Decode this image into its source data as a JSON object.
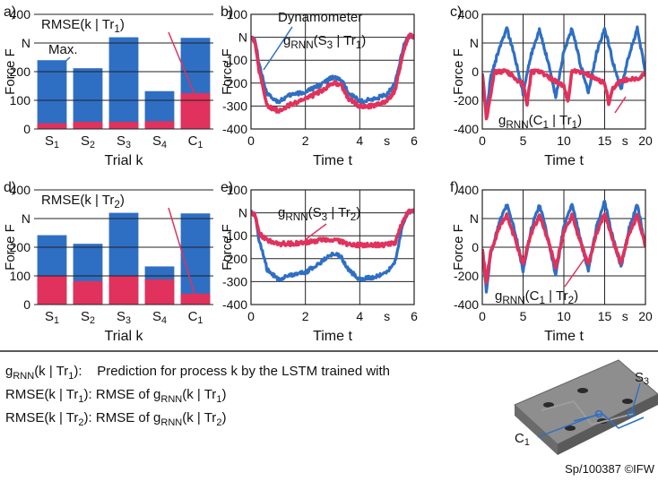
{
  "colors": {
    "blue": "#2e6fc4",
    "red": "#e0325c",
    "grid": "#222222",
    "fixture": "#8e8e8e"
  },
  "legend": [
    {
      "lhs": "g<sub>RNN</sub>(k | Tr<sub>1</sub>):",
      "rhs": "Prediction for process k by the LSTM trained with"
    },
    {
      "lhs": "RMSE(k | Tr<sub>1</sub>):",
      "rhs": "RMSE of g<sub>RNN</sub>(k | Tr<sub>1</sub>)"
    },
    {
      "lhs": "RMSE(k | Tr<sub>2</sub>):",
      "rhs": "RMSE of g<sub>RNN</sub>(k | Tr<sub>2</sub>)"
    }
  ],
  "fixture": {
    "labels": [
      "S3",
      "C1"
    ]
  },
  "credit": "Sp/100387 ©IFW",
  "chart_data": [
    {
      "panel": "a)",
      "type": "bar",
      "ylabel": "Force F",
      "yunit": "N",
      "xlabel": "Trial k",
      "ylim": [
        0,
        400
      ],
      "yticks": [
        0,
        100,
        200,
        300,
        400
      ],
      "categories": [
        "S1",
        "S2",
        "S3",
        "S4",
        "C1"
      ],
      "series": [
        {
          "name": "Max.",
          "color": "#2e6fc4",
          "values": [
            240,
            212,
            320,
            132,
            318
          ]
        },
        {
          "name": "RMSE(k | Tr1)",
          "color": "#e0325c",
          "values": [
            20,
            25,
            25,
            27,
            125
          ]
        }
      ]
    },
    {
      "panel": "b)",
      "type": "line",
      "ylabel": "Force F",
      "yunit": "N",
      "xlabel": "Time t",
      "xunit": "s",
      "xlim": [
        0,
        6
      ],
      "xticks": [
        0,
        2,
        4,
        6
      ],
      "ylim": [
        -400,
        100
      ],
      "yticks": [
        -400,
        -300,
        -200,
        -100,
        0,
        100
      ],
      "series": [
        {
          "name": "Dynamometer",
          "color": "#2e6fc4",
          "x": [
            0,
            0.15,
            0.3,
            0.6,
            1.0,
            1.5,
            2.0,
            2.5,
            3.0,
            3.3,
            3.6,
            4.0,
            4.5,
            5.0,
            5.3,
            5.6,
            5.8
          ],
          "y": [
            0,
            -10,
            -120,
            -250,
            -280,
            -250,
            -240,
            -210,
            -175,
            -185,
            -240,
            -280,
            -270,
            -250,
            -200,
            -40,
            5
          ]
        },
        {
          "name": "gRNN(S3 | Tr1)",
          "color": "#e0325c",
          "x": [
            0,
            0.15,
            0.3,
            0.6,
            1.0,
            1.5,
            2.0,
            2.5,
            3.0,
            3.3,
            3.6,
            4.0,
            4.5,
            5.0,
            5.3,
            5.6,
            5.8
          ],
          "y": [
            0,
            -20,
            -150,
            -300,
            -320,
            -290,
            -270,
            -240,
            -200,
            -205,
            -270,
            -300,
            -300,
            -280,
            -230,
            -60,
            5
          ]
        }
      ]
    },
    {
      "panel": "c)",
      "type": "line",
      "ylabel": "Force F",
      "yunit": "N",
      "xlabel": "Time t",
      "xunit": "s",
      "xlim": [
        0,
        20
      ],
      "xticks": [
        0,
        5,
        10,
        15,
        20
      ],
      "ylim": [
        -400,
        400
      ],
      "yticks": [
        -400,
        -200,
        0,
        200,
        400
      ],
      "series": [
        {
          "name": "Dynamometer",
          "color": "#2e6fc4",
          "x": [
            0,
            0.5,
            1.0,
            2.0,
            3.0,
            4.0,
            5.0,
            6.0,
            7.0,
            8.0,
            9.0,
            10.0,
            11.0,
            12.0,
            13.0,
            14.0,
            15.0,
            16.0,
            17.0,
            18.0,
            19.0,
            20.0
          ],
          "y": [
            0,
            -300,
            -50,
            150,
            300,
            100,
            -150,
            120,
            290,
            80,
            -180,
            140,
            300,
            60,
            -150,
            130,
            310,
            70,
            -130,
            120,
            300,
            0
          ]
        },
        {
          "name": "gRNN(C1 | Tr1)",
          "color": "#e0325c",
          "x": [
            0,
            0.5,
            1.0,
            1.5,
            2.0,
            3.0,
            5.0,
            5.5,
            6.0,
            7.0,
            10.0,
            10.5,
            11.0,
            12.0,
            15.0,
            15.5,
            16.0,
            17.0,
            19.0,
            20.0
          ],
          "y": [
            0,
            -330,
            -160,
            0,
            0,
            0,
            -90,
            -230,
            0,
            0,
            -100,
            -210,
            0,
            0,
            -80,
            -220,
            -120,
            -60,
            -50,
            -10
          ]
        }
      ]
    },
    {
      "panel": "d)",
      "type": "bar",
      "ylabel": "Force F",
      "yunit": "N",
      "xlabel": "Trial k",
      "ylim": [
        0,
        400
      ],
      "yticks": [
        0,
        100,
        200,
        300,
        400
      ],
      "categories": [
        "S1",
        "S2",
        "S3",
        "S4",
        "C1"
      ],
      "series": [
        {
          "name": "Max.",
          "color": "#2e6fc4",
          "values": [
            242,
            212,
            320,
            133,
            318
          ]
        },
        {
          "name": "RMSE(k | Tr2)",
          "color": "#e0325c",
          "values": [
            100,
            82,
            100,
            88,
            38
          ]
        }
      ]
    },
    {
      "panel": "e)",
      "type": "line",
      "ylabel": "Force F",
      "yunit": "N",
      "xlabel": "Time t",
      "xunit": "s",
      "xlim": [
        0,
        6
      ],
      "xticks": [
        0,
        2,
        4,
        6
      ],
      "ylim": [
        -400,
        100
      ],
      "yticks": [
        -400,
        -300,
        -200,
        -100,
        0,
        100
      ],
      "series": [
        {
          "name": "Dynamometer",
          "color": "#2e6fc4",
          "x": [
            0,
            0.15,
            0.3,
            0.6,
            1.0,
            1.5,
            2.0,
            2.5,
            3.0,
            3.3,
            3.6,
            4.0,
            4.5,
            5.0,
            5.3,
            5.6,
            5.8
          ],
          "y": [
            0,
            -10,
            -120,
            -250,
            -290,
            -270,
            -260,
            -220,
            -180,
            -190,
            -250,
            -290,
            -280,
            -260,
            -210,
            -40,
            5
          ]
        },
        {
          "name": "gRNN(S3 | Tr2)",
          "color": "#e0325c",
          "x": [
            0,
            0.15,
            0.3,
            0.6,
            1.0,
            1.5,
            2.0,
            2.5,
            3.0,
            3.3,
            3.6,
            4.0,
            4.5,
            5.0,
            5.3,
            5.6,
            5.8
          ],
          "y": [
            0,
            -10,
            -90,
            -120,
            -135,
            -135,
            -130,
            -120,
            -115,
            -125,
            -140,
            -140,
            -140,
            -140,
            -130,
            -30,
            5
          ]
        }
      ]
    },
    {
      "panel": "f)",
      "type": "line",
      "ylabel": "Force F",
      "yunit": "N",
      "xlabel": "Time t",
      "xunit": "s",
      "xlim": [
        0,
        20
      ],
      "xticks": [
        0,
        5,
        10,
        15,
        20
      ],
      "ylim": [
        -400,
        400
      ],
      "yticks": [
        -400,
        -200,
        0,
        200,
        400
      ],
      "series": [
        {
          "name": "Dynamometer",
          "color": "#2e6fc4",
          "x": [
            0,
            0.5,
            1.0,
            2.0,
            3.0,
            4.0,
            5.0,
            6.0,
            7.0,
            8.0,
            9.0,
            10.0,
            11.0,
            12.0,
            13.0,
            14.0,
            15.0,
            16.0,
            17.0,
            18.0,
            19.0,
            20.0
          ],
          "y": [
            0,
            -310,
            -50,
            160,
            300,
            110,
            -160,
            130,
            300,
            80,
            -200,
            150,
            300,
            60,
            -160,
            140,
            320,
            70,
            -140,
            130,
            300,
            0
          ]
        },
        {
          "name": "gRNN(C1 | Tr2)",
          "color": "#e0325c",
          "x": [
            0,
            0.5,
            1.0,
            2.0,
            3.0,
            4.0,
            5.0,
            6.0,
            7.0,
            8.0,
            9.0,
            10.0,
            11.0,
            12.0,
            13.0,
            14.0,
            15.0,
            16.0,
            17.0,
            18.0,
            19.0,
            20.0
          ],
          "y": [
            0,
            -250,
            -40,
            130,
            220,
            60,
            -120,
            100,
            220,
            60,
            -140,
            110,
            220,
            40,
            -120,
            100,
            230,
            50,
            -110,
            100,
            220,
            0
          ]
        }
      ]
    }
  ]
}
